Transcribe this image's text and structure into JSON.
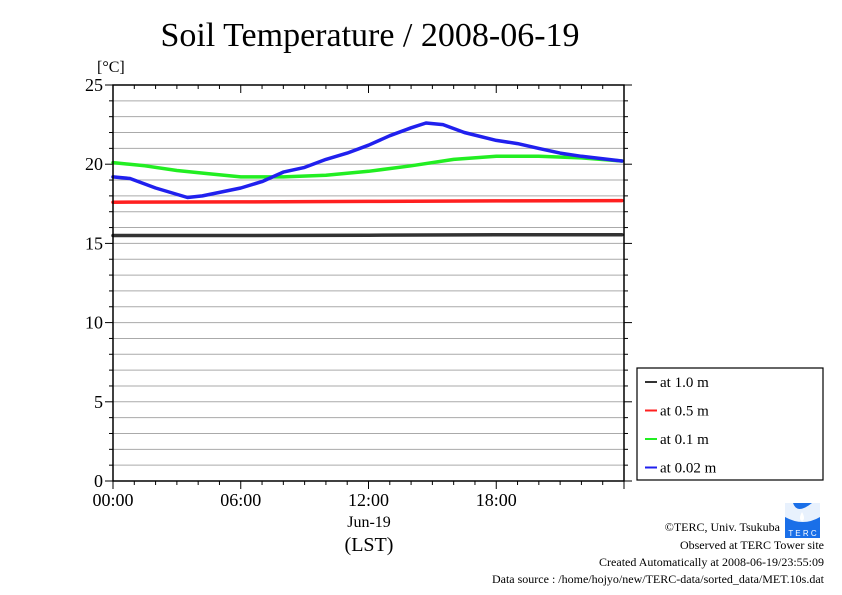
{
  "chart_data": {
    "type": "line",
    "title": "Soil Temperature / 2008-06-19",
    "ylabel": "[°C]",
    "xlabel": "(LST)",
    "xdate": "Jun-19",
    "ylim": [
      0,
      25
    ],
    "xlim_hours": [
      0,
      24
    ],
    "yticks": [
      0,
      5,
      10,
      15,
      20,
      25
    ],
    "xticks": [
      {
        "h": 0,
        "label": "00:00"
      },
      {
        "h": 6,
        "label": "06:00"
      },
      {
        "h": 12,
        "label": "12:00"
      },
      {
        "h": 18,
        "label": "18:00"
      }
    ],
    "grid": true,
    "legend_position": "right-bottom",
    "series": [
      {
        "name": "at 1.0 m",
        "color": "#333333",
        "points": [
          [
            0,
            15.5
          ],
          [
            6,
            15.5
          ],
          [
            12,
            15.52
          ],
          [
            18,
            15.55
          ],
          [
            23.9,
            15.55
          ]
        ]
      },
      {
        "name": "at 0.5 m",
        "color": "#ff2020",
        "points": [
          [
            0,
            17.6
          ],
          [
            6,
            17.62
          ],
          [
            12,
            17.65
          ],
          [
            18,
            17.68
          ],
          [
            23.9,
            17.7
          ]
        ]
      },
      {
        "name": "at 0.1 m",
        "color": "#22ee22",
        "points": [
          [
            0,
            20.1
          ],
          [
            1.5,
            19.9
          ],
          [
            3,
            19.6
          ],
          [
            4.5,
            19.4
          ],
          [
            6,
            19.2
          ],
          [
            8,
            19.2
          ],
          [
            10,
            19.3
          ],
          [
            12,
            19.55
          ],
          [
            14,
            19.9
          ],
          [
            16,
            20.3
          ],
          [
            18,
            20.5
          ],
          [
            20,
            20.5
          ],
          [
            22,
            20.4
          ],
          [
            23.9,
            20.2
          ]
        ]
      },
      {
        "name": "at 0.02 m",
        "color": "#2020ee",
        "points": [
          [
            0,
            19.2
          ],
          [
            0.8,
            19.1
          ],
          [
            2,
            18.5
          ],
          [
            3.5,
            17.9
          ],
          [
            4.2,
            18.0
          ],
          [
            6,
            18.5
          ],
          [
            7,
            18.9
          ],
          [
            8,
            19.5
          ],
          [
            9,
            19.8
          ],
          [
            10,
            20.3
          ],
          [
            11,
            20.7
          ],
          [
            12,
            21.2
          ],
          [
            13,
            21.8
          ],
          [
            14,
            22.3
          ],
          [
            14.7,
            22.6
          ],
          [
            15.5,
            22.5
          ],
          [
            16.5,
            22.0
          ],
          [
            18,
            21.5
          ],
          [
            19,
            21.3
          ],
          [
            20,
            21.0
          ],
          [
            21,
            20.7
          ],
          [
            22,
            20.5
          ],
          [
            23.9,
            20.2
          ]
        ]
      }
    ]
  },
  "footer": {
    "copyright": "©TERC, Univ. Tsukuba",
    "observed": "Observed at TERC Tower site",
    "created": "Created Automatically at 2008-06-19/23:55:09",
    "source": "Data source : /home/hojyo/new/TERC-data/sorted_data/MET.10s.dat",
    "logo_text": "TERC"
  }
}
